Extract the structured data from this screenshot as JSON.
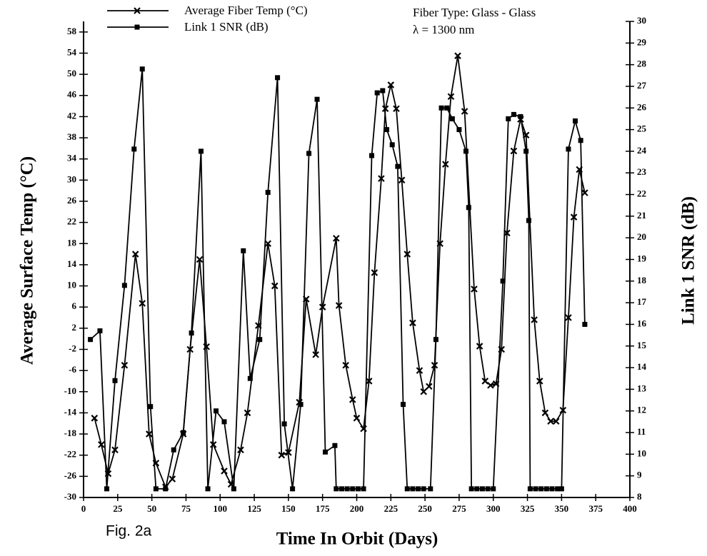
{
  "chart_data": {
    "type": "line",
    "xlabel": "Time In Orbit (Days)",
    "ylabel": "Average Surface Temp (°C)",
    "y2label": "Link 1 SNR (dB)",
    "annotations": [
      "Fiber Type: Glass - Glass",
      "λ = 1300 nm",
      "Fig. 2a"
    ],
    "xlim": [
      0,
      400
    ],
    "xticks": [
      0,
      25,
      50,
      75,
      100,
      125,
      150,
      175,
      200,
      225,
      250,
      275,
      300,
      325,
      350,
      375,
      400
    ],
    "ylim": [
      -30,
      60
    ],
    "yticks": [
      -30,
      -26,
      -22,
      -18,
      -14,
      -10,
      -6,
      -2,
      2,
      6,
      10,
      14,
      18,
      22,
      26,
      30,
      34,
      38,
      42,
      46,
      50,
      54,
      58
    ],
    "y2lim": [
      8,
      30
    ],
    "y2ticks": [
      8,
      9,
      10,
      11,
      12,
      13,
      14,
      15,
      16,
      17,
      18,
      19,
      20,
      21,
      22,
      23,
      24,
      25,
      26,
      27,
      28,
      29,
      30
    ],
    "grid": false,
    "series": [
      {
        "name": "Average Fiber Temp (°C)",
        "color": "#000000",
        "marker": "x",
        "axis": "y",
        "x": [
          8,
          13,
          18,
          23,
          30,
          38,
          43,
          48,
          53,
          60,
          65,
          73,
          78,
          85,
          90,
          95,
          103,
          108,
          115,
          120,
          128,
          135,
          140,
          145,
          150,
          158,
          163,
          170,
          175,
          185,
          187,
          192,
          197,
          200,
          205,
          209,
          213,
          218,
          221,
          225,
          229,
          233,
          237,
          241,
          246,
          249,
          253,
          257,
          261,
          265,
          269,
          274,
          279,
          286,
          290,
          294,
          298,
          302,
          306,
          310,
          315,
          320,
          324,
          330,
          334,
          338,
          342,
          346,
          351,
          355,
          359,
          363,
          367
        ],
        "values": [
          -15,
          -20,
          -25.5,
          -21,
          -5,
          16,
          6.7,
          -18,
          -23.5,
          -28,
          -26.5,
          -18,
          -2,
          15,
          -1.5,
          -20,
          -25,
          -27.5,
          -21,
          -14,
          2.5,
          18,
          10,
          -22,
          -21.5,
          -12,
          7.5,
          -3,
          6,
          19,
          6.3,
          -5,
          -11.5,
          -15,
          -17,
          -8,
          12.5,
          30.3,
          43.5,
          48,
          43.5,
          30,
          16,
          3,
          -6,
          -10,
          -9,
          -5,
          18,
          33,
          45.8,
          53.5,
          43,
          9.4,
          -1.4,
          -8,
          -8.8,
          -8.5,
          -2,
          20,
          35.5,
          41.5,
          38.5,
          3.6,
          -8,
          -14,
          -15.6,
          -15.6,
          -13.5,
          4,
          23,
          32,
          27.6
        ]
      },
      {
        "name": "Link 1 SNR (dB)",
        "color": "#000000",
        "marker": "square",
        "axis": "y2",
        "x": [
          5,
          12,
          17,
          23,
          30,
          37,
          43,
          49,
          53,
          60,
          66,
          73,
          79,
          86,
          91,
          97,
          103,
          110,
          117,
          122,
          129,
          135,
          142,
          147,
          153,
          159,
          165,
          171,
          177,
          184,
          185,
          189,
          193,
          197,
          201,
          205,
          211,
          215,
          219,
          222,
          226,
          230,
          234,
          237,
          241,
          245,
          249,
          254,
          258,
          262,
          266,
          270,
          275,
          280,
          282,
          284,
          288,
          292,
          296,
          300,
          307,
          311,
          315,
          320,
          324,
          326,
          327,
          331,
          335,
          339,
          343,
          347,
          350,
          355,
          360,
          364,
          367
        ],
        "values": [
          15.3,
          15.7,
          8.4,
          13.4,
          17.8,
          24.1,
          27.8,
          12.2,
          8.4,
          8.4,
          10.2,
          11.0,
          15.6,
          24.0,
          8.4,
          12.0,
          11.5,
          8.4,
          19.4,
          13.5,
          15.3,
          22.1,
          27.4,
          11.4,
          8.4,
          12.3,
          23.9,
          26.4,
          10.1,
          10.4,
          8.4,
          8.4,
          8.4,
          8.4,
          8.4,
          8.4,
          23.8,
          26.7,
          26.8,
          25.0,
          24.3,
          23.3,
          12.3,
          8.4,
          8.4,
          8.4,
          8.4,
          8.4,
          15.3,
          26.0,
          26.0,
          25.5,
          25.0,
          24.0,
          21.4,
          8.4,
          8.4,
          8.4,
          8.4,
          8.4,
          18.0,
          25.5,
          25.7,
          25.6,
          24.0,
          20.8,
          8.4,
          8.4,
          8.4,
          8.4,
          8.4,
          8.4,
          8.4,
          24.1,
          25.4,
          24.5,
          16.0
        ]
      }
    ]
  }
}
